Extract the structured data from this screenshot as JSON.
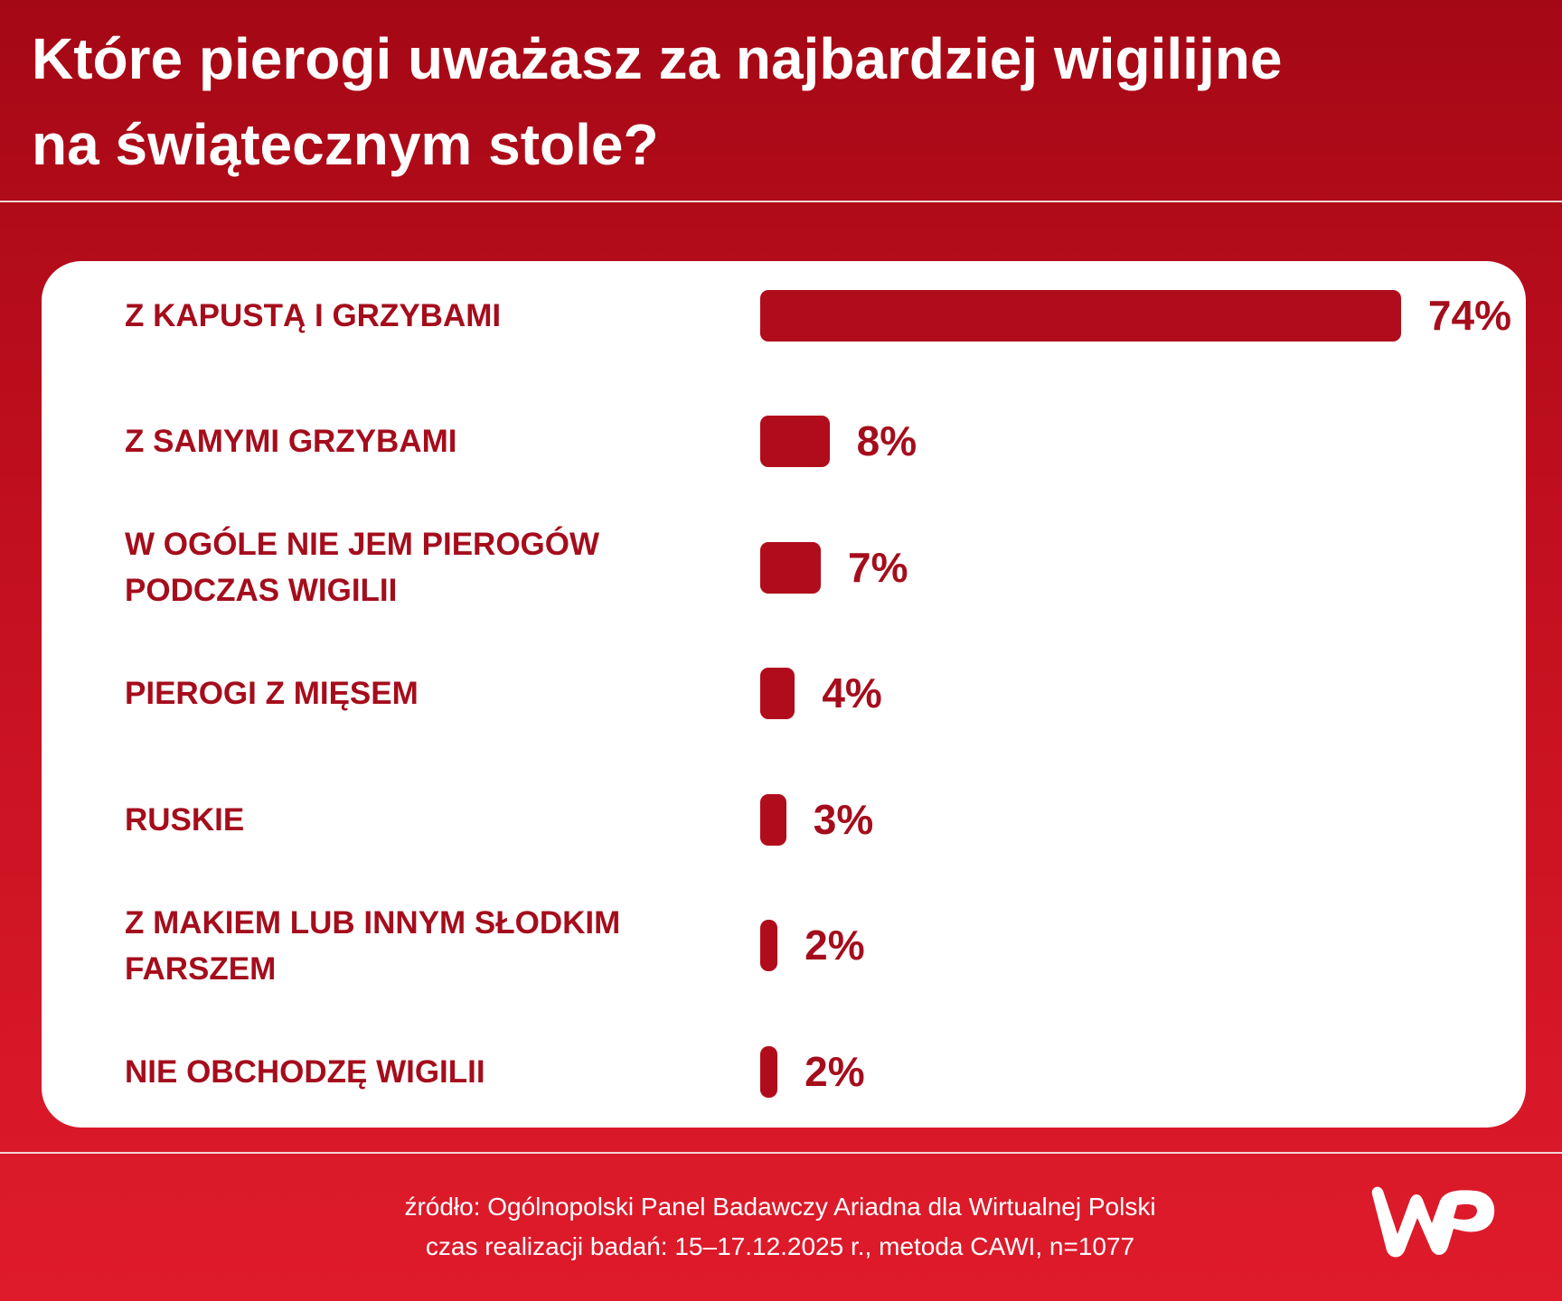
{
  "chart_data": {
    "type": "bar",
    "title": [
      "Które pierogi uważasz za najbardziej wigilijne",
      "na świątecznym stole?"
    ],
    "categories": [
      "Z KAPUSTĄ I GRZYBAMI",
      "Z SAMYMI GRZYBAMI",
      "W OGÓLE NIE JEM PIEROGÓW PODCZAS WIGILII",
      "PIEROGI Z MIĘSEM",
      "RUSKIE",
      "Z MAKIEM LUB INNYM SŁODKIM FARSZEM",
      "NIE OBCHODZĘ WIGILII"
    ],
    "values": [
      74,
      8,
      7,
      4,
      3,
      2,
      2
    ],
    "value_labels": [
      "74%",
      "8%",
      "7%",
      "4%",
      "3%",
      "2%",
      "2%"
    ],
    "color": "#b00c1b",
    "source": [
      "źródło: Ogólnopolski Panel Badawczy Ariadna dla Wirtualnej Polski",
      "czas realizacji badań: 15–17.12.2025 r., metoda CAWI, n=1077"
    ]
  }
}
